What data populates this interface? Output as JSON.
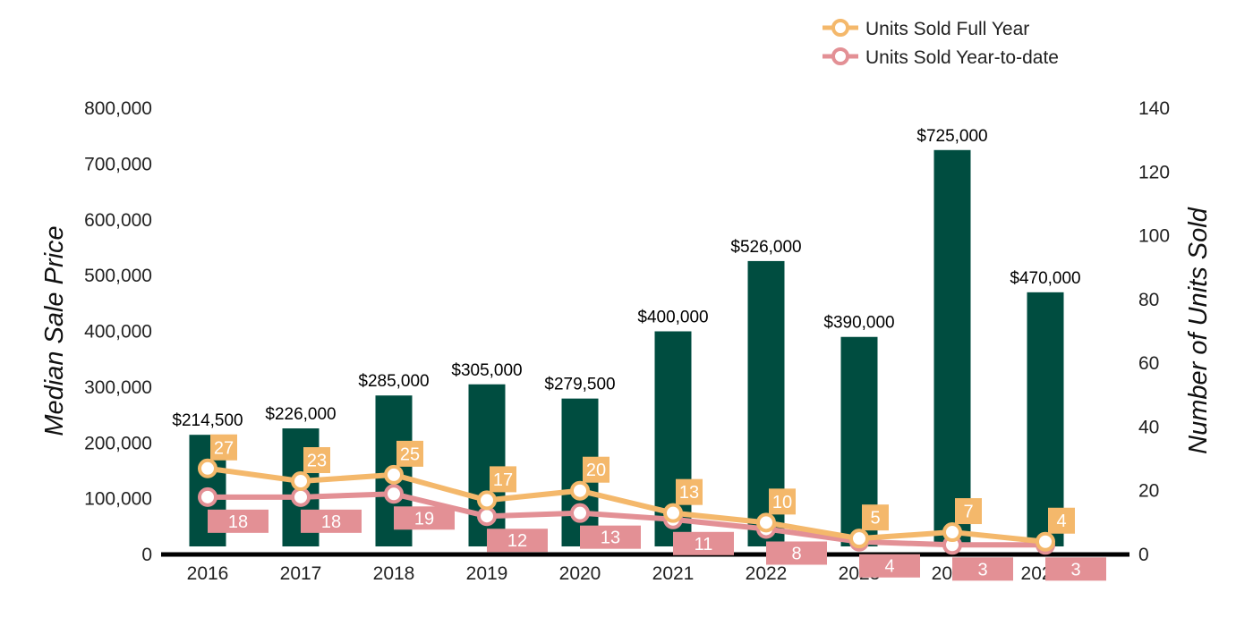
{
  "chart_data": {
    "type": "bar",
    "categories": [
      "2016",
      "2017",
      "2018",
      "2019",
      "2020",
      "2021",
      "2022",
      "2023",
      "2024",
      "2025*"
    ],
    "ylabel": "Median Sale Price",
    "y2label": "Number of Units Sold",
    "ylim": [
      0,
      800000
    ],
    "y2lim": [
      0,
      140
    ],
    "yticks": [
      "0",
      "100,000",
      "200,000",
      "300,000",
      "400,000",
      "500,000",
      "600,000",
      "700,000",
      "800,000"
    ],
    "y2ticks": [
      "0",
      "20",
      "40",
      "60",
      "80",
      "100",
      "120",
      "140"
    ],
    "bar_series": {
      "values": [
        214500,
        226000,
        285000,
        305000,
        279500,
        400000,
        526000,
        390000,
        725000,
        470000
      ],
      "labels": [
        "$214,500",
        "$226,000",
        "$285,000",
        "$305,000",
        "$279,500",
        "$400,000",
        "$526,000",
        "$390,000",
        "$725,000",
        "$470,000"
      ],
      "color": "#004d40"
    },
    "line_series": [
      {
        "name": "Units Sold Full Year",
        "axis": "right",
        "color": "#f4b86b",
        "values": [
          27,
          23,
          25,
          17,
          20,
          13,
          10,
          5,
          7,
          4
        ]
      },
      {
        "name": "Units Sold Year-to-date",
        "axis": "right",
        "color": "#e39095",
        "values": [
          18,
          18,
          19,
          12,
          13,
          11,
          8,
          4,
          3,
          3
        ]
      }
    ],
    "grid": false,
    "legend_position": "top-right"
  }
}
